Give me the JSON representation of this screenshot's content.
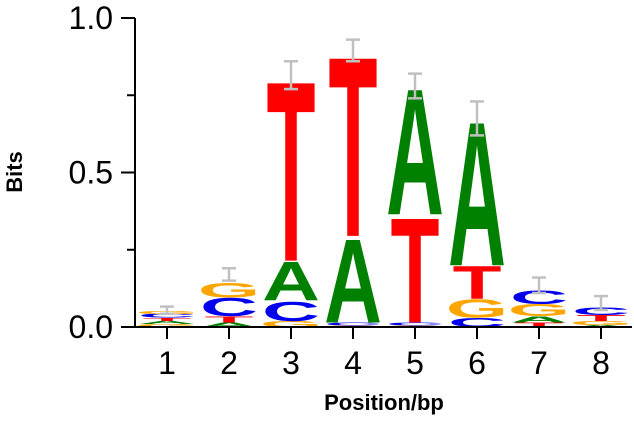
{
  "chart_data": {
    "type": "sequence-logo",
    "xlabel": "Position/bp",
    "ylabel": "Bits",
    "ylim": [
      0,
      1.0
    ],
    "yticks": [
      {
        "value": 0.0,
        "label": "0.0"
      },
      {
        "value": 0.5,
        "label": "0.5"
      },
      {
        "value": 1.0,
        "label": "1.0"
      }
    ],
    "grid": false,
    "colors": {
      "A": "#008000",
      "C": "#0000ee",
      "G": "#ffa500",
      "T": "#ff0000",
      "errorbar": "#c0c0c0"
    },
    "positions": [
      {
        "label": "1",
        "letters": [
          {
            "b": "G",
            "h": 0.01
          },
          {
            "b": "A",
            "h": 0.01
          },
          {
            "b": "T",
            "h": 0.01
          },
          {
            "b": "C",
            "h": 0.012
          },
          {
            "b": "G",
            "h": 0.01
          }
        ],
        "error": [
          0.043,
          0.066
        ]
      },
      {
        "label": "2",
        "letters": [
          {
            "b": "A",
            "h": 0.015
          },
          {
            "b": "T",
            "h": 0.02
          },
          {
            "b": "C",
            "h": 0.06
          },
          {
            "b": "G",
            "h": 0.05
          }
        ],
        "error": [
          0.15,
          0.19
        ]
      },
      {
        "label": "3",
        "letters": [
          {
            "b": "G",
            "h": 0.02
          },
          {
            "b": "C",
            "h": 0.065
          },
          {
            "b": "A",
            "h": 0.13
          },
          {
            "b": "T",
            "h": 0.6
          }
        ],
        "error": [
          0.77,
          0.86
        ]
      },
      {
        "label": "4",
        "letters": [
          {
            "b": "G",
            "h": 0.005
          },
          {
            "b": "C",
            "h": 0.01
          },
          {
            "b": "A",
            "h": 0.28
          },
          {
            "b": "T",
            "h": 0.6
          }
        ],
        "error": [
          0.86,
          0.93
        ]
      },
      {
        "label": "5",
        "letters": [
          {
            "b": "G",
            "h": 0.005
          },
          {
            "b": "C",
            "h": 0.01
          },
          {
            "b": "T",
            "h": 0.35
          },
          {
            "b": "A",
            "h": 0.42
          }
        ],
        "error": [
          0.74,
          0.82
        ]
      },
      {
        "label": "6",
        "letters": [
          {
            "b": "C",
            "h": 0.03
          },
          {
            "b": "G",
            "h": 0.06
          },
          {
            "b": "T",
            "h": 0.11
          },
          {
            "b": "A",
            "h": 0.48
          }
        ],
        "error": [
          0.62,
          0.73
        ]
      },
      {
        "label": "7",
        "letters": [
          {
            "b": "T",
            "h": 0.015
          },
          {
            "b": "A",
            "h": 0.02
          },
          {
            "b": "G",
            "h": 0.04
          },
          {
            "b": "C",
            "h": 0.045
          }
        ],
        "error": [
          0.11,
          0.16
        ]
      },
      {
        "label": "8",
        "letters": [
          {
            "b": "A",
            "h": 0.007
          },
          {
            "b": "G",
            "h": 0.012
          },
          {
            "b": "T",
            "h": 0.02
          },
          {
            "b": "C",
            "h": 0.025
          }
        ],
        "error": [
          0.055,
          0.1
        ]
      }
    ]
  }
}
